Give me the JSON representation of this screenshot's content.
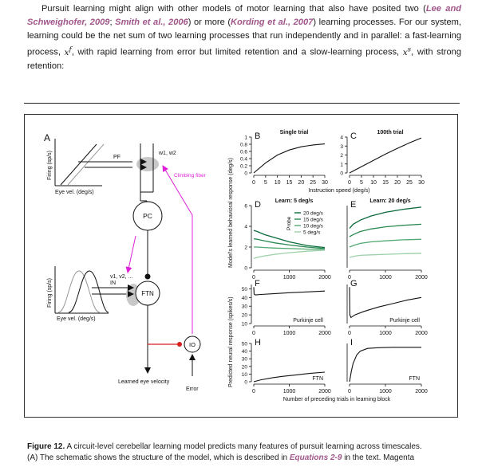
{
  "paragraph": {
    "t1": "Pursuit learning might align with other models of motor learning that also have posited two (",
    "cite1": "Lee and Schweighofer, 2009",
    "t2": "; ",
    "cite2": "Smith et al., 2006",
    "t3": ") or more (",
    "cite3": "Kording et al., 2007",
    "t4": ") learning processes. For our system, learning could be the net sum of two learning processes that run independently and in parallel: a fast-learning process, ",
    "var_fast": "x",
    "var_fast_sup": "f",
    "t5": ", with rapid learning from error but limited retention and a slow-learning process, ",
    "var_slow": "x",
    "var_slow_sup": "s",
    "t6": ", with strong retention:"
  },
  "schematic": {
    "panel_a": "A",
    "firing_label": "Firing (sp/s)",
    "eye_vel_label": "Eye vel. (deg/s)",
    "pf": "PF",
    "w_label": "w1, w2",
    "climbing_fiber": "Climbing fiber",
    "pc": "PC",
    "v_label": "v1, v2, ...",
    "in_label": "IN",
    "ftn": "FTN",
    "io": "IO",
    "learned_eye_velocity": "Learned eye velocity",
    "error": "Error"
  },
  "shared_labels": {
    "behavior_ylabel": "Model's learned behavioral response (deg/s)",
    "neural_ylabel": "Predicted neural response (spikes/s)",
    "speed_xlabel": "Instruction speed (deg/s)",
    "trials_xlabel": "Number of preceding trials in learning block"
  },
  "chart_data": [
    {
      "panel": "B",
      "type": "line",
      "title": "Single trial",
      "x": [
        0,
        5,
        10,
        15,
        20,
        25,
        30
      ],
      "y": [
        0,
        0.28,
        0.5,
        0.64,
        0.73,
        0.78,
        0.81
      ],
      "xticks": [
        "0",
        "5",
        "10",
        "15",
        "20",
        "25",
        "30"
      ],
      "yticks": [
        "0",
        "0.2",
        "0.4",
        "0.6",
        "0.8",
        "1"
      ],
      "xlim": [
        0,
        30
      ],
      "ylim": [
        0,
        1
      ]
    },
    {
      "panel": "C",
      "type": "line",
      "title": "100th trial",
      "x": [
        0,
        5,
        10,
        15,
        20,
        25,
        30
      ],
      "y": [
        0,
        0.7,
        1.4,
        2.1,
        2.75,
        3.35,
        3.9
      ],
      "xticks": [
        "0",
        "5",
        "10",
        "15",
        "20",
        "25",
        "30"
      ],
      "yticks": [
        "0",
        "1",
        "2",
        "3",
        "4"
      ],
      "xlim": [
        0,
        30
      ],
      "ylim": [
        0,
        4
      ]
    },
    {
      "panel": "D",
      "type": "line",
      "title": "Learn: 5 deg/s",
      "legend_title": "Probe",
      "x": [
        0,
        100,
        300,
        600,
        1000,
        1500,
        2000
      ],
      "series": [
        {
          "name": "20 deg/s",
          "color": "#0a6b3a",
          "values": [
            3.6,
            3.5,
            3.2,
            2.9,
            2.5,
            2.15,
            1.95
          ]
        },
        {
          "name": "15 deg/s",
          "color": "#2a8a52",
          "values": [
            2.8,
            2.75,
            2.6,
            2.4,
            2.2,
            2.0,
            1.85
          ]
        },
        {
          "name": "10 deg/s",
          "color": "#52a872",
          "values": [
            2.0,
            2.0,
            1.95,
            1.9,
            1.85,
            1.8,
            1.78
          ]
        },
        {
          "name": "5 deg/s",
          "color": "#9bd0a8",
          "values": [
            0.9,
            1.0,
            1.15,
            1.3,
            1.45,
            1.6,
            1.7
          ]
        }
      ],
      "xticks": [
        "0",
        "1000",
        "2000"
      ],
      "yticks": [
        "0",
        "2",
        "4",
        "6"
      ],
      "xlim": [
        0,
        2000
      ],
      "ylim": [
        0,
        6
      ]
    },
    {
      "panel": "E",
      "type": "line",
      "title": "Learn: 20 deg/s",
      "x": [
        0,
        100,
        300,
        600,
        1000,
        1500,
        2000
      ],
      "series": [
        {
          "name": "20 deg/s",
          "color": "#0a6b3a",
          "values": [
            3.8,
            4.2,
            4.6,
            5.0,
            5.35,
            5.65,
            5.85
          ]
        },
        {
          "name": "15 deg/s",
          "color": "#2a8a52",
          "values": [
            3.0,
            3.2,
            3.5,
            3.75,
            3.95,
            4.1,
            4.2
          ]
        },
        {
          "name": "10 deg/s",
          "color": "#52a872",
          "values": [
            2.0,
            2.15,
            2.35,
            2.5,
            2.6,
            2.7,
            2.75
          ]
        },
        {
          "name": "5 deg/s",
          "color": "#9bd0a8",
          "values": [
            1.0,
            1.1,
            1.2,
            1.25,
            1.3,
            1.35,
            1.4
          ]
        }
      ],
      "xticks": [
        "0",
        "1000",
        "2000"
      ],
      "yticks": [],
      "xlim": [
        0,
        2000
      ],
      "ylim": [
        0,
        6
      ]
    },
    {
      "panel": "F",
      "type": "line",
      "annotation": "Purkinje cell",
      "x": [
        0,
        10,
        40,
        200,
        600,
        1000,
        1500,
        2000
      ],
      "y": [
        52,
        44,
        43,
        43.5,
        44.5,
        45.5,
        46.5,
        47.5
      ],
      "xticks": [
        "0",
        "1000",
        "2000"
      ],
      "yticks": [
        "10",
        "20",
        "30",
        "40",
        "50"
      ],
      "xlim": [
        0,
        2000
      ],
      "ylim": [
        10,
        55
      ]
    },
    {
      "panel": "G",
      "type": "line",
      "annotation": "Purkinje cell",
      "x": [
        0,
        10,
        40,
        150,
        400,
        800,
        1200,
        1600,
        2000
      ],
      "y": [
        52,
        20,
        17,
        20,
        24,
        29,
        33,
        37,
        40
      ],
      "xticks": [
        "0",
        "1000",
        "2000"
      ],
      "yticks": [],
      "xlim": [
        0,
        2000
      ],
      "ylim": [
        10,
        55
      ]
    },
    {
      "panel": "H",
      "type": "line",
      "annotation": "FTN",
      "x": [
        0,
        200,
        500,
        800,
        1200,
        1600,
        2000
      ],
      "y": [
        0,
        2.5,
        5,
        7,
        9,
        11,
        12.5
      ],
      "xticks": [
        "0",
        "1000",
        "2000"
      ],
      "yticks": [
        "0",
        "10",
        "20",
        "30",
        "40",
        "50"
      ],
      "xlim": [
        0,
        2000
      ],
      "ylim": [
        0,
        50
      ]
    },
    {
      "panel": "I",
      "type": "line",
      "annotation": "FTN",
      "x": [
        0,
        50,
        100,
        200,
        300,
        500,
        800,
        1200,
        2000
      ],
      "y": [
        0,
        14,
        24,
        35,
        40,
        43.5,
        44.5,
        45,
        45
      ],
      "xticks": [
        "0",
        "1000",
        "2000"
      ],
      "yticks": [],
      "xlim": [
        0,
        2000
      ],
      "ylim": [
        0,
        50
      ]
    }
  ],
  "caption": {
    "figure_label": "Figure 12.",
    "text1": " A circuit-level cerebellar learning model predicts many features of pursuit learning across timescales.",
    "text2": "(A) The schematic shows the structure of the model, which is described in ",
    "eq_ref": "Equations 2-9",
    "text3": " in the text. Magenta"
  },
  "colors": {
    "magenta": "#e020d8",
    "red": "#d81e1e",
    "green_dark": "#0a6b3a",
    "cite": "#a0568a"
  }
}
